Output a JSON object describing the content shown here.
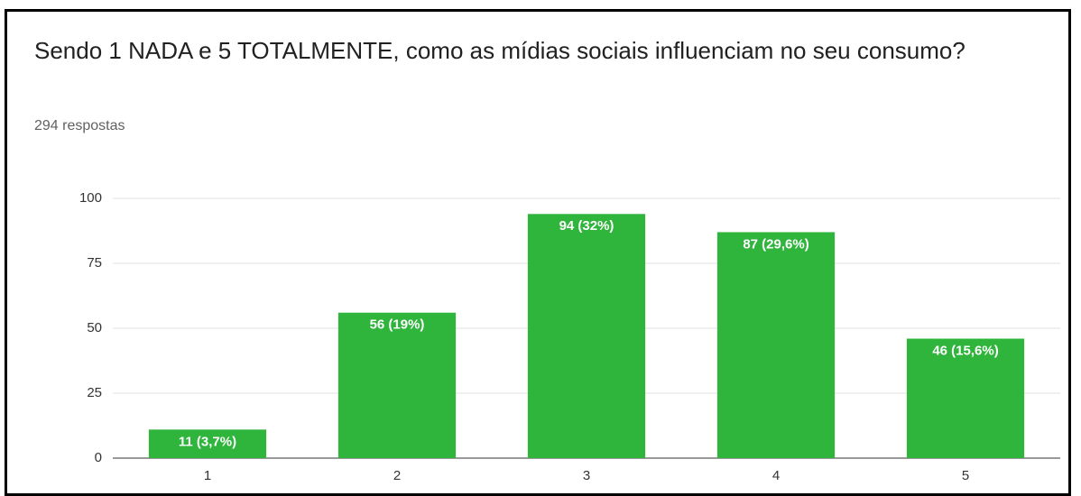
{
  "chart_data": {
    "type": "bar",
    "title": "Sendo 1 NADA e 5 TOTALMENTE, como as mídias sociais influenciam no seu consumo?",
    "subtitle": "294 respostas",
    "categories": [
      "1",
      "2",
      "3",
      "4",
      "5"
    ],
    "values": [
      11,
      56,
      94,
      87,
      46
    ],
    "value_labels": [
      "11 (3,7%)",
      "56 (19%)",
      "94 (32%)",
      "87 (29,6%)",
      "46 (15,6%)"
    ],
    "color": "#2fb53c",
    "ylim": [
      0,
      100
    ],
    "yticks": [
      0,
      25,
      50,
      75,
      100
    ],
    "grid": true
  }
}
